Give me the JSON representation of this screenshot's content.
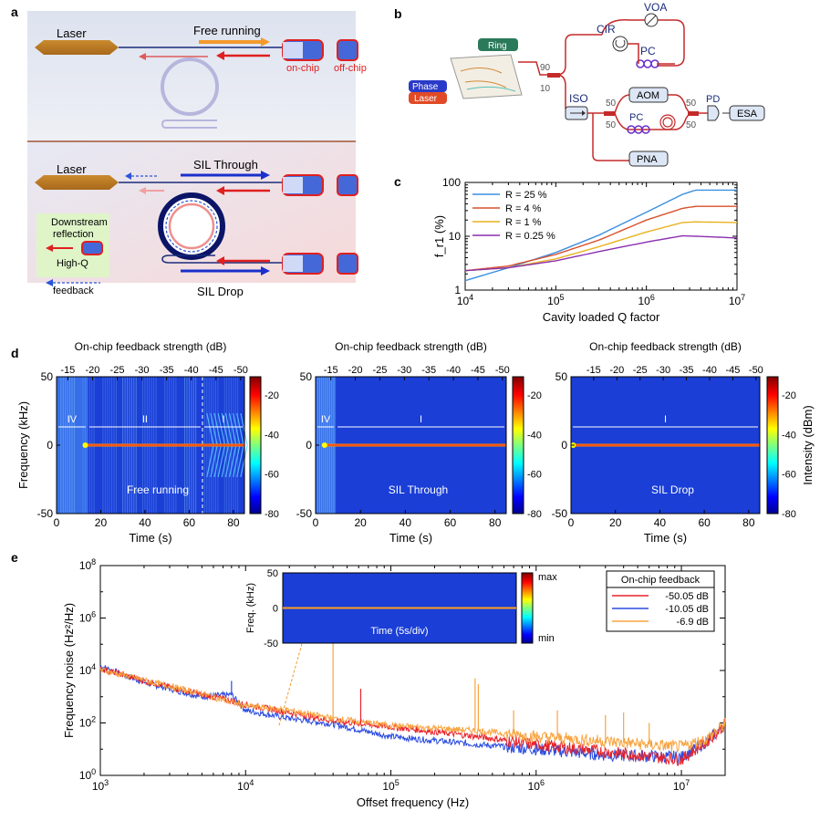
{
  "panels": {
    "a": {
      "label": "a",
      "top": {
        "laser": "Laser",
        "mode": "Free running",
        "onchip": "on-chip",
        "offchip": "off-chip"
      },
      "bottom": {
        "laser": "Laser",
        "through": "SIL Through",
        "drop": "SIL Drop"
      },
      "legend": {
        "line1": "Downstream",
        "line2": "reflection",
        "line3": "High-Q",
        "line4": "feedback"
      }
    },
    "b": {
      "label": "b",
      "ring": "Ring",
      "phase": "Phase",
      "laser": "Laser",
      "voa": "VOA",
      "cir": "CIR",
      "pc1": "PC",
      "pc2": "PC",
      "iso": "ISO",
      "aom": "AOM",
      "pd": "PD",
      "esa": "ESA",
      "pna": "PNA",
      "s90": "90",
      "s10": "10",
      "s50a": "50",
      "s50b": "50",
      "s50c": "50",
      "s50d": "50"
    },
    "c": {
      "label": "c"
    },
    "d": {
      "label": "d",
      "top_axis_label": "On-chip feedback strength (dB)",
      "ylabel": "Frequency (kHz)",
      "xlabel": "Time (s)",
      "cbar_label": "Intensity (dBm)",
      "maps": [
        {
          "caption": "Free running",
          "regions": [
            "IV",
            "II",
            "I"
          ],
          "top_ticks": [
            "-15",
            "-20",
            "-25",
            "-30",
            "-35",
            "-40",
            "-45",
            "-50"
          ]
        },
        {
          "caption": "SIL Through",
          "regions": [
            "IV",
            "I"
          ],
          "top_ticks": [
            "-15",
            "-20",
            "-25",
            "-30",
            "-35",
            "-40",
            "-45",
            "-50"
          ]
        },
        {
          "caption": "SIL Drop",
          "regions": [
            "I"
          ],
          "top_ticks": [
            "-15",
            "-20",
            "-25",
            "-30",
            "-35",
            "-40",
            "-45",
            "-50"
          ]
        }
      ],
      "x_ticks": [
        "0",
        "20",
        "40",
        "60",
        "80"
      ],
      "y_ticks": [
        "50",
        "0",
        "-50"
      ],
      "cbar_ticks": [
        "-20",
        "-40",
        "-60",
        "-80"
      ]
    },
    "e": {
      "label": "e",
      "inset": {
        "ylabel": "Freq. (kHz)",
        "caption": "Time (5s/div)",
        "y_ticks": [
          "50",
          "0",
          "-50"
        ],
        "cbar_max": "max",
        "cbar_min": "min"
      },
      "legend_title": "On-chip feedback"
    }
  },
  "chart_data": [
    {
      "type": "line",
      "title": "",
      "xlabel": "Cavity loaded Q factor",
      "ylabel": "f_r1 (%)",
      "xscale": "log",
      "yscale": "log",
      "xlim": [
        10000,
        10000000
      ],
      "ylim": [
        1,
        100
      ],
      "x_ticks": [
        "10^4",
        "10^5",
        "10^6",
        "10^7"
      ],
      "y_ticks": [
        "1",
        "10",
        "100"
      ],
      "legend": "top-left",
      "x": [
        10000,
        30000,
        100000,
        300000,
        1000000,
        2500000,
        3500000,
        10000000
      ],
      "series": [
        {
          "name": "R = 25 %",
          "color": "#3b8fe0",
          "values": [
            1.5,
            2.6,
            5.0,
            10.5,
            28,
            60,
            72,
            72
          ]
        },
        {
          "name": "R = 4 %",
          "color": "#d9512c",
          "values": [
            2.3,
            2.8,
            4.6,
            8.5,
            20,
            33,
            36,
            36
          ]
        },
        {
          "name": "R = 1 %",
          "color": "#e8b11f",
          "values": [
            2.3,
            2.6,
            3.8,
            6.4,
            12,
            18,
            18.5,
            18
          ]
        },
        {
          "name": "R =  0.25 %",
          "color": "#8a2fb0",
          "values": [
            2.3,
            2.6,
            3.5,
            5.2,
            7.8,
            10.2,
            10,
            9.3
          ]
        }
      ]
    },
    {
      "type": "line",
      "title": "",
      "xlabel": "Offset frequency (Hz)",
      "ylabel": "Frequency noise (Hz²/Hz)",
      "xscale": "log",
      "yscale": "log",
      "xlim": [
        1000,
        20000000
      ],
      "ylim": [
        1,
        100000000
      ],
      "x_ticks": [
        "10^3",
        "10^4",
        "10^5",
        "10^6",
        "10^7"
      ],
      "y_ticks": [
        "10^0",
        "10^2",
        "10^4",
        "10^6",
        "10^8"
      ],
      "legend": "top-right",
      "x": [
        1000,
        2000,
        5000,
        8000,
        10000,
        20000,
        40000,
        100000,
        400000,
        1000000,
        3000000,
        10000000,
        15000000,
        20000000
      ],
      "series": [
        {
          "name": "-50.05 dB",
          "color": "#e8222a",
          "values": [
            12000,
            4000,
            1200,
            700,
            500,
            250,
            120,
            70,
            30,
            15,
            8,
            4,
            20,
            90
          ]
        },
        {
          "name": "-10.05 dB",
          "color": "#2a4be0",
          "values": [
            15000,
            3500,
            1000,
            1200,
            300,
            150,
            90,
            30,
            15,
            10,
            6,
            5,
            20,
            90
          ]
        },
        {
          "name": "-6.9 dB",
          "color": "#f7a440",
          "values": [
            11000,
            4200,
            1300,
            600,
            450,
            300,
            150,
            80,
            50,
            30,
            20,
            12,
            25,
            90
          ]
        }
      ],
      "peaks_hz": [
        40000,
        62000,
        380000,
        400000,
        700000,
        1400000,
        3000000,
        4000000,
        6000000
      ]
    }
  ]
}
